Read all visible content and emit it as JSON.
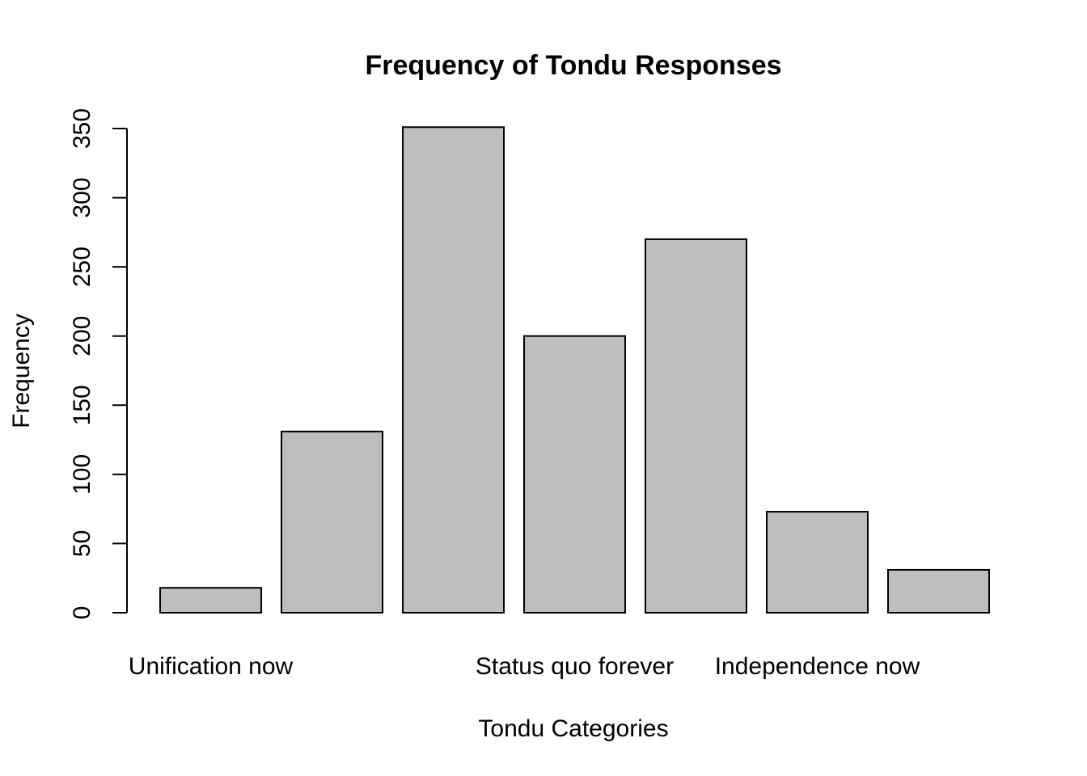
{
  "chart_data": {
    "type": "bar",
    "title": "Frequency of Tondu Responses",
    "xlabel": "Tondu Categories",
    "ylabel": "Frequency",
    "category_labels_shown": [
      "Unification now",
      "",
      "",
      "Status quo forever",
      "",
      "Independence now",
      ""
    ],
    "values": [
      18,
      131,
      351,
      200,
      270,
      73,
      31
    ],
    "ylim": [
      0,
      350
    ],
    "yticks": [
      0,
      50,
      100,
      150,
      200,
      250,
      300,
      350
    ],
    "bar_color": "#bebebe",
    "border_color": "#000000",
    "grid": false,
    "legend": "none"
  }
}
